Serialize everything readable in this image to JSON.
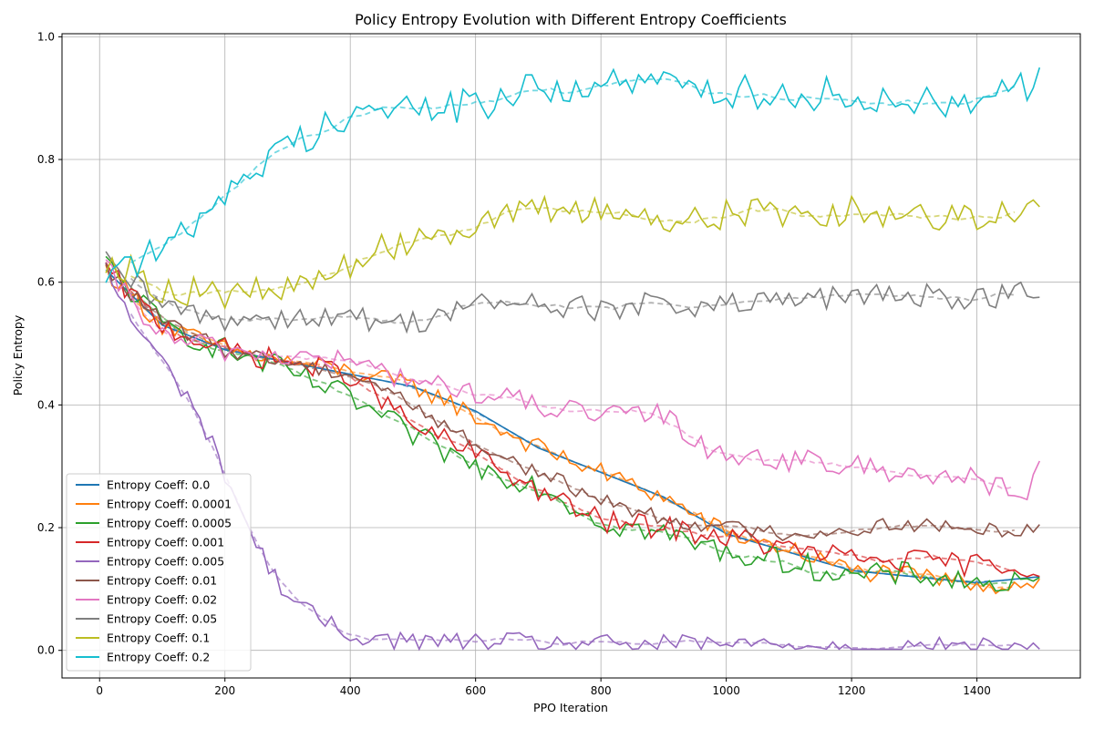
{
  "chart_data": {
    "type": "line",
    "title": "Policy Entropy Evolution with Different Entropy Coefficients",
    "xlabel": "PPO Iteration",
    "ylabel": "Policy Entropy",
    "xlim": [
      -60,
      1565
    ],
    "ylim": [
      -0.045,
      1.005
    ],
    "xticks": [
      0,
      200,
      400,
      600,
      800,
      1000,
      1200,
      1400
    ],
    "yticks": [
      0.0,
      0.2,
      0.4,
      0.6,
      0.8,
      1.0
    ],
    "xtick_labels": [
      "0",
      "200",
      "400",
      "600",
      "800",
      "1000",
      "1200",
      "1400"
    ],
    "ytick_labels": [
      "0.0",
      "0.2",
      "0.4",
      "0.6",
      "0.8",
      "1.0"
    ],
    "grid": true,
    "legend_position": "lower-left",
    "trend_style": "dashed, lighter, smoothed",
    "x_start": 10,
    "x_step": 10,
    "x_end": 1500,
    "series": [
      {
        "name": "Entropy Coeff: 0.0",
        "color": "#1f77b4",
        "anchors_x": [
          10,
          100,
          200,
          300,
          400,
          500,
          600,
          700,
          800,
          900,
          1000,
          1100,
          1200,
          1300,
          1400,
          1500
        ],
        "anchors_y": [
          0.62,
          0.53,
          0.49,
          0.47,
          0.45,
          0.43,
          0.39,
          0.33,
          0.29,
          0.25,
          0.19,
          0.16,
          0.13,
          0.12,
          0.11,
          0.12
        ],
        "noise": 0.0
      },
      {
        "name": "Entropy Coeff: 0.0001",
        "color": "#ff7f0e",
        "anchors_x": [
          10,
          100,
          200,
          300,
          400,
          500,
          550,
          600,
          700,
          800,
          900,
          1000,
          1100,
          1200,
          1300,
          1400,
          1450,
          1500
        ],
        "anchors_y": [
          0.62,
          0.53,
          0.49,
          0.47,
          0.455,
          0.43,
          0.41,
          0.38,
          0.33,
          0.29,
          0.25,
          0.19,
          0.165,
          0.13,
          0.12,
          0.11,
          0.105,
          0.115
        ],
        "noise": 0.01
      },
      {
        "name": "Entropy Coeff: 0.0005",
        "color": "#2ca02c",
        "anchors_x": [
          10,
          100,
          200,
          300,
          400,
          450,
          500,
          600,
          700,
          800,
          900,
          1000,
          1100,
          1200,
          1300,
          1400,
          1500
        ],
        "anchors_y": [
          0.63,
          0.53,
          0.49,
          0.455,
          0.41,
          0.38,
          0.35,
          0.3,
          0.27,
          0.21,
          0.19,
          0.16,
          0.145,
          0.12,
          0.125,
          0.11,
          0.105
        ],
        "noise": 0.013
      },
      {
        "name": "Entropy Coeff: 0.001",
        "color": "#d62728",
        "anchors_x": [
          10,
          100,
          200,
          300,
          400,
          450,
          500,
          600,
          700,
          800,
          900,
          1000,
          1100,
          1200,
          1300,
          1400,
          1500
        ],
        "anchors_y": [
          0.62,
          0.53,
          0.49,
          0.47,
          0.45,
          0.41,
          0.365,
          0.32,
          0.26,
          0.21,
          0.2,
          0.185,
          0.165,
          0.15,
          0.145,
          0.14,
          0.135
        ],
        "noise": 0.012
      },
      {
        "name": "Entropy Coeff: 0.005",
        "color": "#9467bd",
        "anchors_x": [
          10,
          50,
          100,
          150,
          200,
          250,
          300,
          350,
          400,
          500,
          600,
          700,
          800,
          1000,
          1200,
          1400,
          1500
        ],
        "anchors_y": [
          0.62,
          0.54,
          0.47,
          0.4,
          0.29,
          0.17,
          0.09,
          0.05,
          0.025,
          0.015,
          0.013,
          0.013,
          0.01,
          0.01,
          0.007,
          0.005,
          0.005
        ],
        "noise": 0.01
      },
      {
        "name": "Entropy Coeff: 0.01",
        "color": "#8c564b",
        "anchors_x": [
          10,
          100,
          200,
          300,
          400,
          450,
          500,
          600,
          700,
          800,
          900,
          1000,
          1100,
          1200,
          1250,
          1300,
          1400,
          1500
        ],
        "anchors_y": [
          0.62,
          0.535,
          0.49,
          0.47,
          0.45,
          0.43,
          0.4,
          0.335,
          0.29,
          0.245,
          0.215,
          0.2,
          0.19,
          0.195,
          0.205,
          0.205,
          0.195,
          0.2
        ],
        "noise": 0.008
      },
      {
        "name": "Entropy Coeff: 0.02",
        "color": "#e377c2",
        "anchors_x": [
          10,
          100,
          200,
          300,
          400,
          500,
          600,
          700,
          800,
          900,
          950,
          1000,
          1100,
          1200,
          1300,
          1400,
          1470,
          1500
        ],
        "anchors_y": [
          0.62,
          0.51,
          0.49,
          0.48,
          0.47,
          0.44,
          0.42,
          0.4,
          0.38,
          0.385,
          0.34,
          0.32,
          0.31,
          0.3,
          0.29,
          0.28,
          0.25,
          0.29
        ],
        "noise": 0.012
      },
      {
        "name": "Entropy Coeff: 0.05",
        "color": "#7f7f7f",
        "anchors_x": [
          10,
          100,
          200,
          300,
          400,
          500,
          600,
          700,
          800,
          900,
          1000,
          1100,
          1200,
          1300,
          1400,
          1500
        ],
        "anchors_y": [
          0.63,
          0.56,
          0.54,
          0.545,
          0.54,
          0.535,
          0.565,
          0.565,
          0.555,
          0.565,
          0.56,
          0.57,
          0.575,
          0.58,
          0.575,
          0.585
        ],
        "noise": 0.013
      },
      {
        "name": "Entropy Coeff: 0.1",
        "color": "#bcbd22",
        "anchors_x": [
          10,
          100,
          200,
          300,
          400,
          500,
          600,
          700,
          800,
          900,
          1000,
          1100,
          1200,
          1300,
          1400,
          1500
        ],
        "anchors_y": [
          0.64,
          0.59,
          0.58,
          0.585,
          0.63,
          0.675,
          0.695,
          0.715,
          0.72,
          0.7,
          0.71,
          0.715,
          0.715,
          0.71,
          0.71,
          0.72
        ],
        "noise": 0.016
      },
      {
        "name": "Entropy Coeff: 0.2",
        "color": "#17becf",
        "anchors_x": [
          10,
          100,
          200,
          300,
          400,
          500,
          600,
          700,
          800,
          900,
          1000,
          1100,
          1200,
          1300,
          1400,
          1500
        ],
        "anchors_y": [
          0.625,
          0.645,
          0.75,
          0.82,
          0.88,
          0.88,
          0.89,
          0.915,
          0.92,
          0.925,
          0.91,
          0.91,
          0.905,
          0.89,
          0.905,
          0.93
        ],
        "noise": 0.018
      }
    ]
  }
}
